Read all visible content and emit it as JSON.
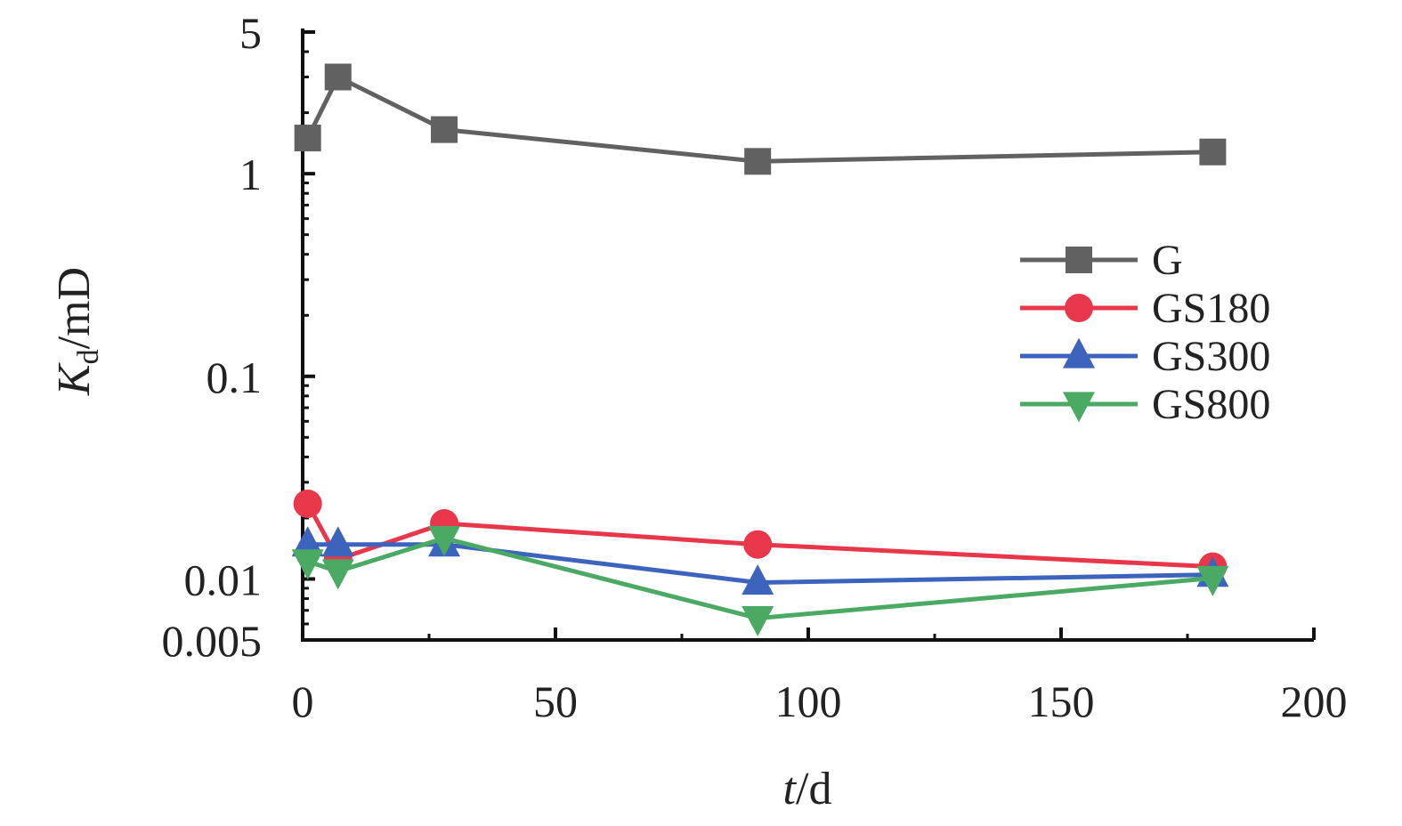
{
  "chart_data": {
    "type": "line",
    "title": "",
    "x_axis": {
      "label_italic": "t",
      "label_rest": "/d",
      "range": [
        0,
        200
      ],
      "ticks": [
        0,
        50,
        100,
        150,
        200
      ],
      "tick_labels": [
        "0",
        "50",
        "100",
        "150",
        "200"
      ],
      "scale": "linear"
    },
    "y_axis": {
      "label_italic": "K",
      "label_sub": "d",
      "label_rest": "/mD",
      "range": [
        0.005,
        5
      ],
      "ticks": [
        0.005,
        0.01,
        0.1,
        1,
        5
      ],
      "tick_labels": [
        "0.005",
        "0.01",
        "0.1",
        "1",
        "5"
      ],
      "scale": "log"
    },
    "grid": false,
    "legend_position": "right",
    "series": [
      {
        "name": "G",
        "color": "#616161",
        "marker": "square",
        "x": [
          1,
          7,
          28,
          90,
          180
        ],
        "y": [
          1.5,
          3.0,
          1.65,
          1.15,
          1.28
        ]
      },
      {
        "name": "GS180",
        "color": "#e8374a",
        "marker": "circle",
        "x": [
          1,
          7,
          28,
          90,
          180
        ],
        "y": [
          0.0235,
          0.0125,
          0.0188,
          0.0148,
          0.0115
        ]
      },
      {
        "name": "GS300",
        "color": "#3d64bd",
        "marker": "triangle-up",
        "x": [
          1,
          7,
          28,
          90,
          180
        ],
        "y": [
          0.0148,
          0.0148,
          0.0148,
          0.0096,
          0.0105
        ]
      },
      {
        "name": "GS800",
        "color": "#4aaa63",
        "marker": "triangle-down",
        "x": [
          1,
          7,
          28,
          90,
          180
        ],
        "y": [
          0.0122,
          0.0109,
          0.0159,
          0.0064,
          0.0101
        ]
      }
    ]
  }
}
